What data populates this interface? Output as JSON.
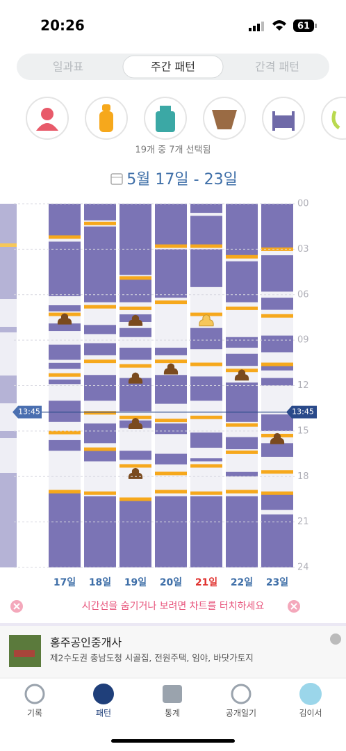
{
  "status": {
    "time": "20:26",
    "battery": "61"
  },
  "tabs": [
    "일과표",
    "주간 패턴",
    "간격 패턴"
  ],
  "filter_caption": "19개 중 7개 선택됨",
  "date_range": "5월 17일 - 23일",
  "chart": {
    "ylim": [
      0,
      24
    ],
    "yticks": [
      {
        "value": 0,
        "label": "00"
      },
      {
        "value": 3,
        "label": "03"
      },
      {
        "value": 6,
        "label": "06"
      },
      {
        "value": 9,
        "label": "09"
      },
      {
        "value": 12,
        "label": "12"
      },
      {
        "value": 15,
        "label": "15"
      },
      {
        "value": 18,
        "label": "18"
      },
      {
        "value": 21,
        "label": "21"
      },
      {
        "value": 24,
        "label": "24"
      }
    ],
    "current_time": {
      "value": 13.75,
      "label": "13:45"
    },
    "highlight_day": 4,
    "sleep_color": "#7b74b5",
    "feed_color": "#f6a81c",
    "poop_color": "#7a4a1e",
    "days": [
      {
        "label": "17일",
        "sleep": [
          [
            0,
            2.1
          ],
          [
            2.5,
            6.1
          ],
          [
            6.7,
            7.1
          ],
          [
            7.9,
            8.4
          ],
          [
            9.3,
            10.3
          ],
          [
            10.5,
            10.9
          ],
          [
            11.6,
            11.9
          ],
          [
            13,
            14.4
          ],
          [
            15.6,
            16.3
          ],
          [
            18.9,
            24
          ]
        ],
        "feeds": [
          2.2,
          7.3,
          11.3,
          15.1,
          19
        ],
        "poop": [
          7.6
        ]
      },
      {
        "label": "18일",
        "sleep": [
          [
            0,
            1.1
          ],
          [
            1.5,
            6.5
          ],
          [
            8,
            8.6
          ],
          [
            9.2,
            10
          ],
          [
            11.3,
            13
          ],
          [
            14.5,
            15.8
          ],
          [
            16.3,
            17
          ],
          [
            19.3,
            24
          ]
        ],
        "feeds": [
          1.3,
          6.8,
          10.4,
          13.8,
          16.2,
          19.1
        ],
        "poop": []
      },
      {
        "label": "19일",
        "sleep": [
          [
            0,
            4.7
          ],
          [
            5,
            6.5
          ],
          [
            7.3,
            7.8
          ],
          [
            8.2,
            8.8
          ],
          [
            9.5,
            10.3
          ],
          [
            11.5,
            13.7
          ],
          [
            14.3,
            14.8
          ],
          [
            16.3,
            16.9
          ],
          [
            19.6,
            24
          ]
        ],
        "feeds": [
          4.9,
          6.9,
          10.7,
          14.1,
          17.3,
          19.5
        ],
        "poop": [
          7.7,
          11.5,
          14.5,
          17.8
        ]
      },
      {
        "label": "20일",
        "sleep": [
          [
            0,
            2.7
          ],
          [
            3,
            6.2
          ],
          [
            9.5,
            10
          ],
          [
            11.3,
            13.2
          ],
          [
            14.5,
            15.2
          ],
          [
            16.5,
            17.2
          ],
          [
            19.3,
            24
          ]
        ],
        "feeds": [
          2.8,
          6.5,
          10.4,
          14.3,
          17.8,
          19
        ],
        "poop": [
          10.9
        ]
      },
      {
        "label": "21일",
        "sleep": [
          [
            0,
            0.6
          ],
          [
            0.8,
            2.7
          ],
          [
            3,
            5.5
          ],
          [
            8.2,
            9.6
          ],
          [
            11.4,
            13
          ],
          [
            15.1,
            16.1
          ],
          [
            16.8,
            17
          ],
          [
            19.3,
            24
          ]
        ],
        "feeds": [
          2.8,
          7.3,
          10.6,
          14.1,
          17.3,
          19.1
        ],
        "poop": [
          7.7
        ]
      },
      {
        "label": "22일",
        "sleep": [
          [
            0,
            3.4
          ],
          [
            3.8,
            6.5
          ],
          [
            8.8,
            9.5
          ],
          [
            9.9,
            10.7
          ],
          [
            11.8,
            14.4
          ],
          [
            15.4,
            16.2
          ],
          [
            17.7,
            18
          ],
          [
            19.3,
            24
          ]
        ],
        "feeds": [
          3.5,
          6.9,
          11,
          14.6,
          16.4,
          19
        ],
        "poop": [
          11.3
        ]
      },
      {
        "label": "23일",
        "sleep": [
          [
            0,
            3.1
          ],
          [
            3.4,
            5.8
          ],
          [
            6.2,
            7
          ],
          [
            8.7,
            9.8
          ],
          [
            10.5,
            11
          ],
          [
            11.5,
            12
          ],
          [
            13.9,
            15
          ],
          [
            15.8,
            16.7
          ],
          [
            19.2,
            20.2
          ],
          [
            20.5,
            24
          ]
        ],
        "feeds": [
          3,
          7.4,
          10.6,
          15.3,
          17.7,
          19.1
        ],
        "poop": [
          15.5
        ]
      }
    ]
  },
  "hint": "시간선을 숨기거나 보려면 차트를 터치하세요",
  "ad": {
    "title": "홍주공인중개사",
    "description": "제2수도권 충남도청 시골집, 전원주택, 임야, 바닷가토지"
  },
  "nav": [
    "기록",
    "패턴",
    "통계",
    "공개일기",
    "김이서"
  ]
}
